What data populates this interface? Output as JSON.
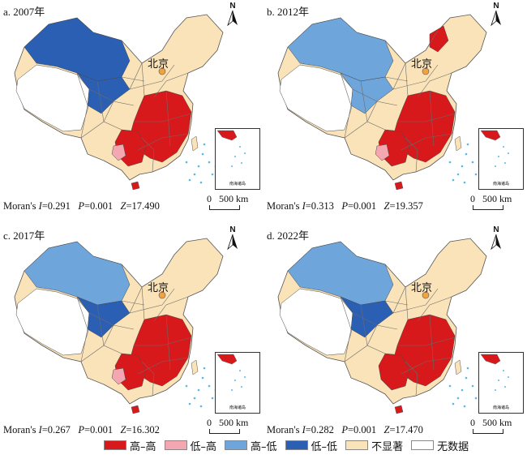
{
  "figure": {
    "panels": [
      {
        "label": "a. 2007年",
        "moran_prefix": "Moran's ",
        "moran_italic": "I",
        "moran_value": "=0.291",
        "p_label": "P",
        "p_value": "=0.001",
        "z_label": "Z",
        "z_value": "=17.490"
      },
      {
        "label": "b. 2012年",
        "moran_prefix": "Moran's ",
        "moran_italic": "I",
        "moran_value": "=0.313",
        "p_label": "P",
        "p_value": "=0.001",
        "z_label": "Z",
        "z_value": "=19.357"
      },
      {
        "label": "c. 2017年",
        "moran_prefix": "Moran's ",
        "moran_italic": "I",
        "moran_value": "=0.267",
        "p_label": "P",
        "p_value": "=0.001",
        "z_label": "Z",
        "z_value": "=16.302"
      },
      {
        "label": "d. 2022年",
        "moran_prefix": "Moran's ",
        "moran_italic": "I",
        "moran_value": "=0.282",
        "p_label": "P",
        "p_value": "=0.001",
        "z_label": "Z",
        "z_value": "=17.470"
      }
    ],
    "capital_label": "北京",
    "north_label": "N",
    "scale": {
      "zero": "0",
      "distance": "500 km"
    },
    "inset_caption": "南海诸岛",
    "legend": [
      {
        "label": "高–高",
        "color": "#d7191c"
      },
      {
        "label": "低–高",
        "color": "#f4a7b0"
      },
      {
        "label": "高–低",
        "color": "#6ea6dc"
      },
      {
        "label": "低–低",
        "color": "#2b5fb4"
      },
      {
        "label": "不显著",
        "color": "#fae3b8"
      },
      {
        "label": "无数据",
        "color": "#ffffff"
      }
    ],
    "colors": {
      "boundary": "#6b6b6b",
      "sea_dots": "#58b9e8"
    }
  }
}
